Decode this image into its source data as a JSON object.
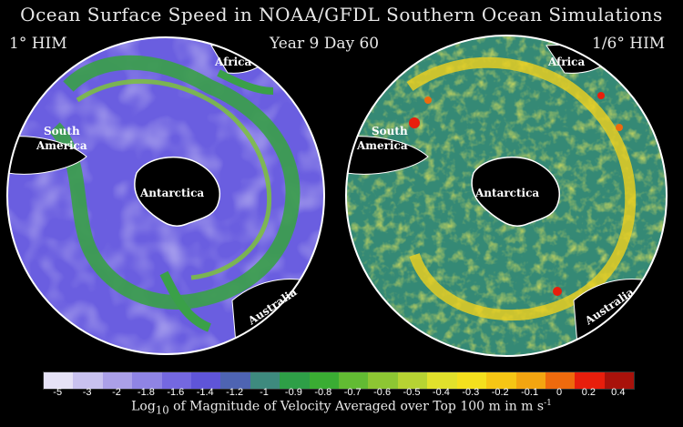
{
  "title": "Ocean Surface Speed in NOAA/GFDL Southern Ocean Simulations",
  "left_model": "1° HIM",
  "center_label": "Year 9 Day 60",
  "right_model": "1/6° HIM",
  "continents": {
    "africa": "Africa",
    "south_america_line1": "South",
    "south_america_line2": "America",
    "antarctica": "Antarctica",
    "australia": "Australia"
  },
  "colorbar": {
    "ticks": [
      "-5",
      "-3",
      "-2",
      "-1.8",
      "-1.6",
      "-1.4",
      "-1.2",
      "-1",
      "-0.9",
      "-0.8",
      "-0.7",
      "-0.6",
      "-0.5",
      "-0.4",
      "-0.3",
      "-0.2",
      "-0.1",
      "0",
      "0.2",
      "0.4"
    ],
    "colors": [
      "#e6e2f6",
      "#c9c2ef",
      "#aba0e8",
      "#8f84e4",
      "#7468e0",
      "#5f55d8",
      "#4e64b2",
      "#3e8a7e",
      "#2e9f47",
      "#3aad33",
      "#62bb33",
      "#8dc633",
      "#b6d333",
      "#e1e12c",
      "#f4e01e",
      "#f6c615",
      "#f3a511",
      "#ee6a0d",
      "#e81e0c",
      "#a8120b"
    ],
    "caption_prefix": "Log",
    "caption_sub": "10",
    "caption_main": " of Magnitude of Velocity Averaged over Top 100 m in m s",
    "caption_sup": "-1"
  }
}
